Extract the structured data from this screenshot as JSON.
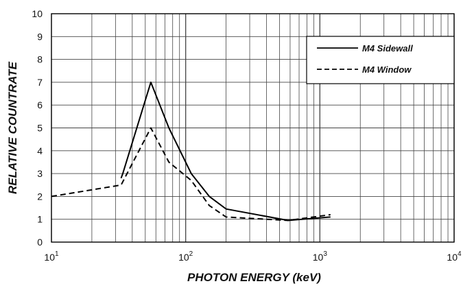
{
  "chart_data": {
    "type": "line",
    "xlabel": "PHOTON ENERGY (keV)",
    "ylabel": "RELATIVE COUNTRATE",
    "x_scale": "log",
    "xlim": [
      10,
      10000
    ],
    "ylim": [
      0,
      10
    ],
    "x_ticks": [
      {
        "value": 10,
        "base": "10",
        "exp": "1"
      },
      {
        "value": 100,
        "base": "10",
        "exp": "2"
      },
      {
        "value": 1000,
        "base": "10",
        "exp": "3"
      },
      {
        "value": 10000,
        "base": "10",
        "exp": "4"
      }
    ],
    "y_ticks": [
      0,
      1,
      2,
      3,
      4,
      5,
      6,
      7,
      8,
      9,
      10
    ],
    "grid": true,
    "legend_position": "top-right",
    "series": [
      {
        "name": "M4 Sidewall",
        "style": "solid",
        "color": "#000000",
        "points": [
          [
            33,
            2.8
          ],
          [
            34,
            3.0
          ],
          [
            55,
            7.0
          ],
          [
            75,
            5.0
          ],
          [
            110,
            3.0
          ],
          [
            150,
            2.0
          ],
          [
            200,
            1.45
          ],
          [
            580,
            0.95
          ],
          [
            1200,
            1.1
          ]
        ]
      },
      {
        "name": "M4 Window",
        "style": "dashed",
        "color": "#000000",
        "points": [
          [
            10,
            2.0
          ],
          [
            33,
            2.5
          ],
          [
            55,
            5.0
          ],
          [
            75,
            3.5
          ],
          [
            110,
            2.7
          ],
          [
            150,
            1.6
          ],
          [
            200,
            1.1
          ],
          [
            580,
            0.95
          ],
          [
            1200,
            1.2
          ]
        ]
      }
    ]
  }
}
